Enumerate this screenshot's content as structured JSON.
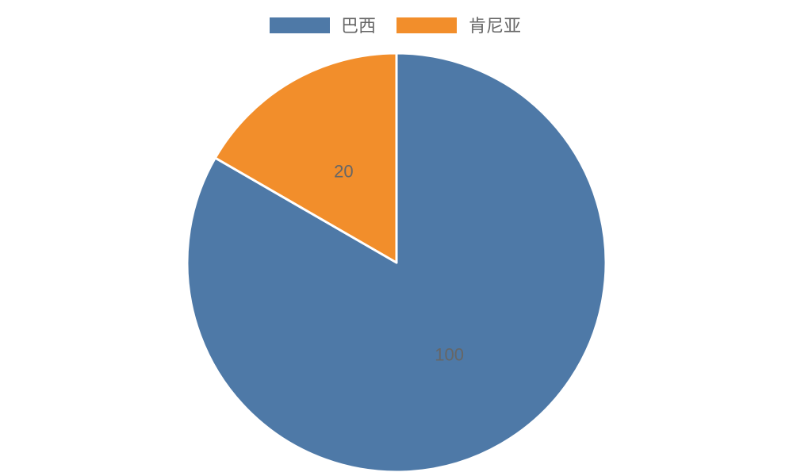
{
  "chart_data": {
    "type": "pie",
    "title": "",
    "categories": [
      "巴西",
      "肯尼亚"
    ],
    "values": [
      100,
      20
    ],
    "colors": [
      "#4e79a7",
      "#f28e2b"
    ],
    "legend": "top",
    "start": "top",
    "direction": "clockwise",
    "data_labels": [
      "100",
      "20"
    ]
  }
}
